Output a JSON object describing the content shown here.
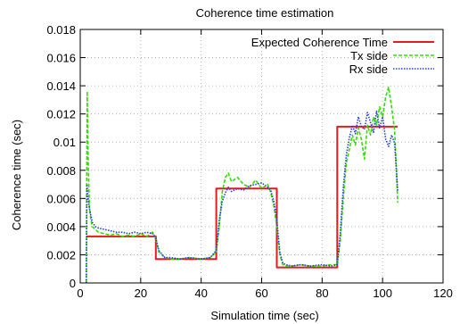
{
  "chart_data": {
    "type": "line",
    "title": "Coherence time estimation",
    "xlabel": "Simulation time (sec)",
    "ylabel": "Coherence time (sec)",
    "xlim": [
      0,
      120
    ],
    "ylim": [
      0,
      0.018
    ],
    "x_ticks": [
      "0",
      "20",
      "40",
      "60",
      "80",
      "100",
      "120"
    ],
    "y_ticks": [
      "0",
      "0.002",
      "0.004",
      "0.006",
      "0.008",
      "0.01",
      "0.012",
      "0.014",
      "0.016",
      "0.018"
    ],
    "grid": true,
    "legend_position": "top-right",
    "series": [
      {
        "name": "Expected Coherence Time",
        "color": "#e41a1c",
        "style": "solid",
        "x": [
          2,
          25,
          25,
          45,
          45,
          65,
          65,
          85,
          85,
          105
        ],
        "y": [
          0.0033,
          0.0033,
          0.0017,
          0.0017,
          0.0067,
          0.0067,
          0.0011,
          0.0011,
          0.0111,
          0.0111
        ]
      },
      {
        "name": "Tx side",
        "color": "#33dd00",
        "style": "dashed",
        "x": [
          2,
          2.3,
          2.6,
          3,
          3.5,
          4,
          5,
          6,
          8,
          10,
          12,
          14,
          16,
          18,
          20,
          22,
          24,
          25,
          26,
          28,
          30,
          33,
          36,
          40,
          43,
          45,
          46,
          47,
          48,
          49,
          50,
          52,
          54,
          56,
          58,
          60,
          62,
          63,
          64,
          65,
          66,
          67,
          68,
          70,
          73,
          76,
          80,
          83,
          85,
          86,
          87,
          88,
          89,
          90,
          91,
          92,
          93,
          94,
          95,
          96,
          97,
          98,
          99,
          100,
          101,
          102,
          103,
          104,
          104.5,
          105
        ],
        "y": [
          0.0,
          0.0136,
          0.009,
          0.0055,
          0.0045,
          0.004,
          0.0038,
          0.0036,
          0.0035,
          0.0034,
          0.0035,
          0.0033,
          0.0034,
          0.0033,
          0.0035,
          0.0033,
          0.0036,
          0.0031,
          0.0022,
          0.0018,
          0.0017,
          0.0017,
          0.0018,
          0.0017,
          0.0018,
          0.0022,
          0.004,
          0.0065,
          0.0075,
          0.0078,
          0.0072,
          0.0075,
          0.007,
          0.0068,
          0.0073,
          0.0067,
          0.007,
          0.0064,
          0.0055,
          0.004,
          0.002,
          0.0013,
          0.0012,
          0.0012,
          0.0013,
          0.0012,
          0.0012,
          0.0013,
          0.0013,
          0.003,
          0.006,
          0.0085,
          0.0095,
          0.0105,
          0.0098,
          0.011,
          0.0102,
          0.0088,
          0.0112,
          0.0105,
          0.0118,
          0.0112,
          0.0125,
          0.0118,
          0.0132,
          0.0139,
          0.0125,
          0.0108,
          0.0085,
          0.0057
        ]
      },
      {
        "name": "Rx side",
        "color": "#1f3fdf",
        "style": "dotted",
        "x": [
          2,
          2.2,
          2.5,
          3,
          3.5,
          4,
          5,
          6,
          8,
          10,
          12,
          14,
          16,
          18,
          20,
          22,
          24,
          25,
          26,
          28,
          30,
          33,
          36,
          40,
          43,
          45,
          46,
          47,
          48,
          49,
          50,
          52,
          54,
          56,
          58,
          60,
          62,
          63,
          64,
          65,
          66,
          67,
          68,
          70,
          73,
          76,
          80,
          83,
          85,
          86,
          87,
          88,
          89,
          90,
          91,
          92,
          93,
          94,
          95,
          96,
          97,
          98,
          99,
          100,
          101,
          102,
          103,
          104,
          104.5,
          105
        ],
        "y": [
          0.0,
          0.007,
          0.0062,
          0.0053,
          0.0048,
          0.0043,
          0.004,
          0.0039,
          0.0038,
          0.0037,
          0.0036,
          0.0036,
          0.0035,
          0.0036,
          0.0035,
          0.0036,
          0.0035,
          0.0032,
          0.0023,
          0.0018,
          0.0018,
          0.0017,
          0.0018,
          0.0017,
          0.0018,
          0.0023,
          0.0045,
          0.0058,
          0.0064,
          0.0068,
          0.0065,
          0.0067,
          0.0066,
          0.0069,
          0.007,
          0.0071,
          0.0068,
          0.0066,
          0.0058,
          0.0045,
          0.0022,
          0.0014,
          0.0013,
          0.0012,
          0.0013,
          0.0012,
          0.0013,
          0.0012,
          0.0013,
          0.0035,
          0.0068,
          0.0091,
          0.0103,
          0.0112,
          0.0106,
          0.0118,
          0.0111,
          0.0109,
          0.0121,
          0.0114,
          0.0107,
          0.0122,
          0.011,
          0.0118,
          0.0102,
          0.0097,
          0.0105,
          0.0099,
          0.0082,
          0.0065
        ]
      }
    ]
  }
}
